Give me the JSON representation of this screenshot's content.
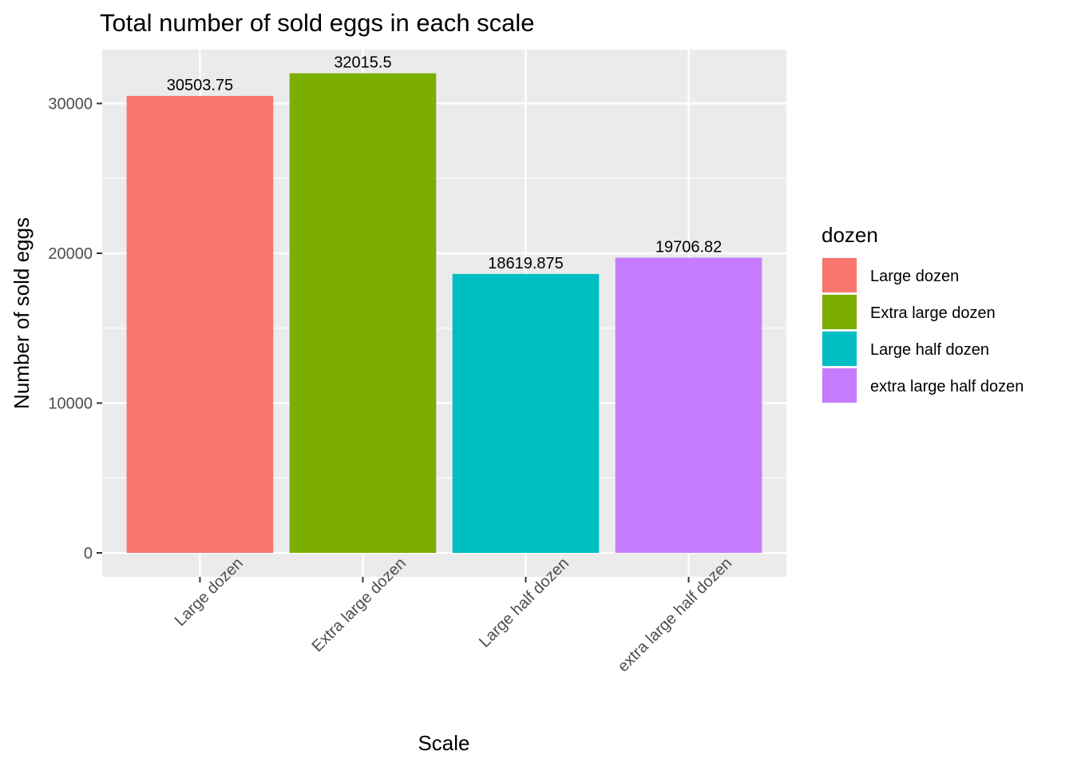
{
  "chart_data": {
    "type": "bar",
    "title": "Total number of sold eggs in each scale",
    "xlabel": "Scale",
    "ylabel": "Number of sold eggs",
    "categories": [
      "Large dozen",
      "Extra large dozen",
      "Large half dozen",
      "extra large half dozen"
    ],
    "values": [
      30503.75,
      32015.5,
      18619.875,
      19706.82
    ],
    "value_labels": [
      "30503.75",
      "32015.5",
      "18619.875",
      "19706.82"
    ],
    "colors": [
      "#F8766D",
      "#7CAE00",
      "#00BFC4",
      "#C77CFF"
    ],
    "ylim": [
      -1600,
      33600
    ],
    "yticks": [
      0,
      10000,
      20000,
      30000
    ],
    "ytick_labels": [
      "0",
      "10000",
      "20000",
      "30000"
    ],
    "grid": true,
    "x_tick_label_rotation": "45 degrees",
    "legend": {
      "title": "dozen",
      "position": "right",
      "entries": [
        "Large dozen",
        "Extra large dozen",
        "Large half dozen",
        "extra large half dozen"
      ]
    }
  }
}
